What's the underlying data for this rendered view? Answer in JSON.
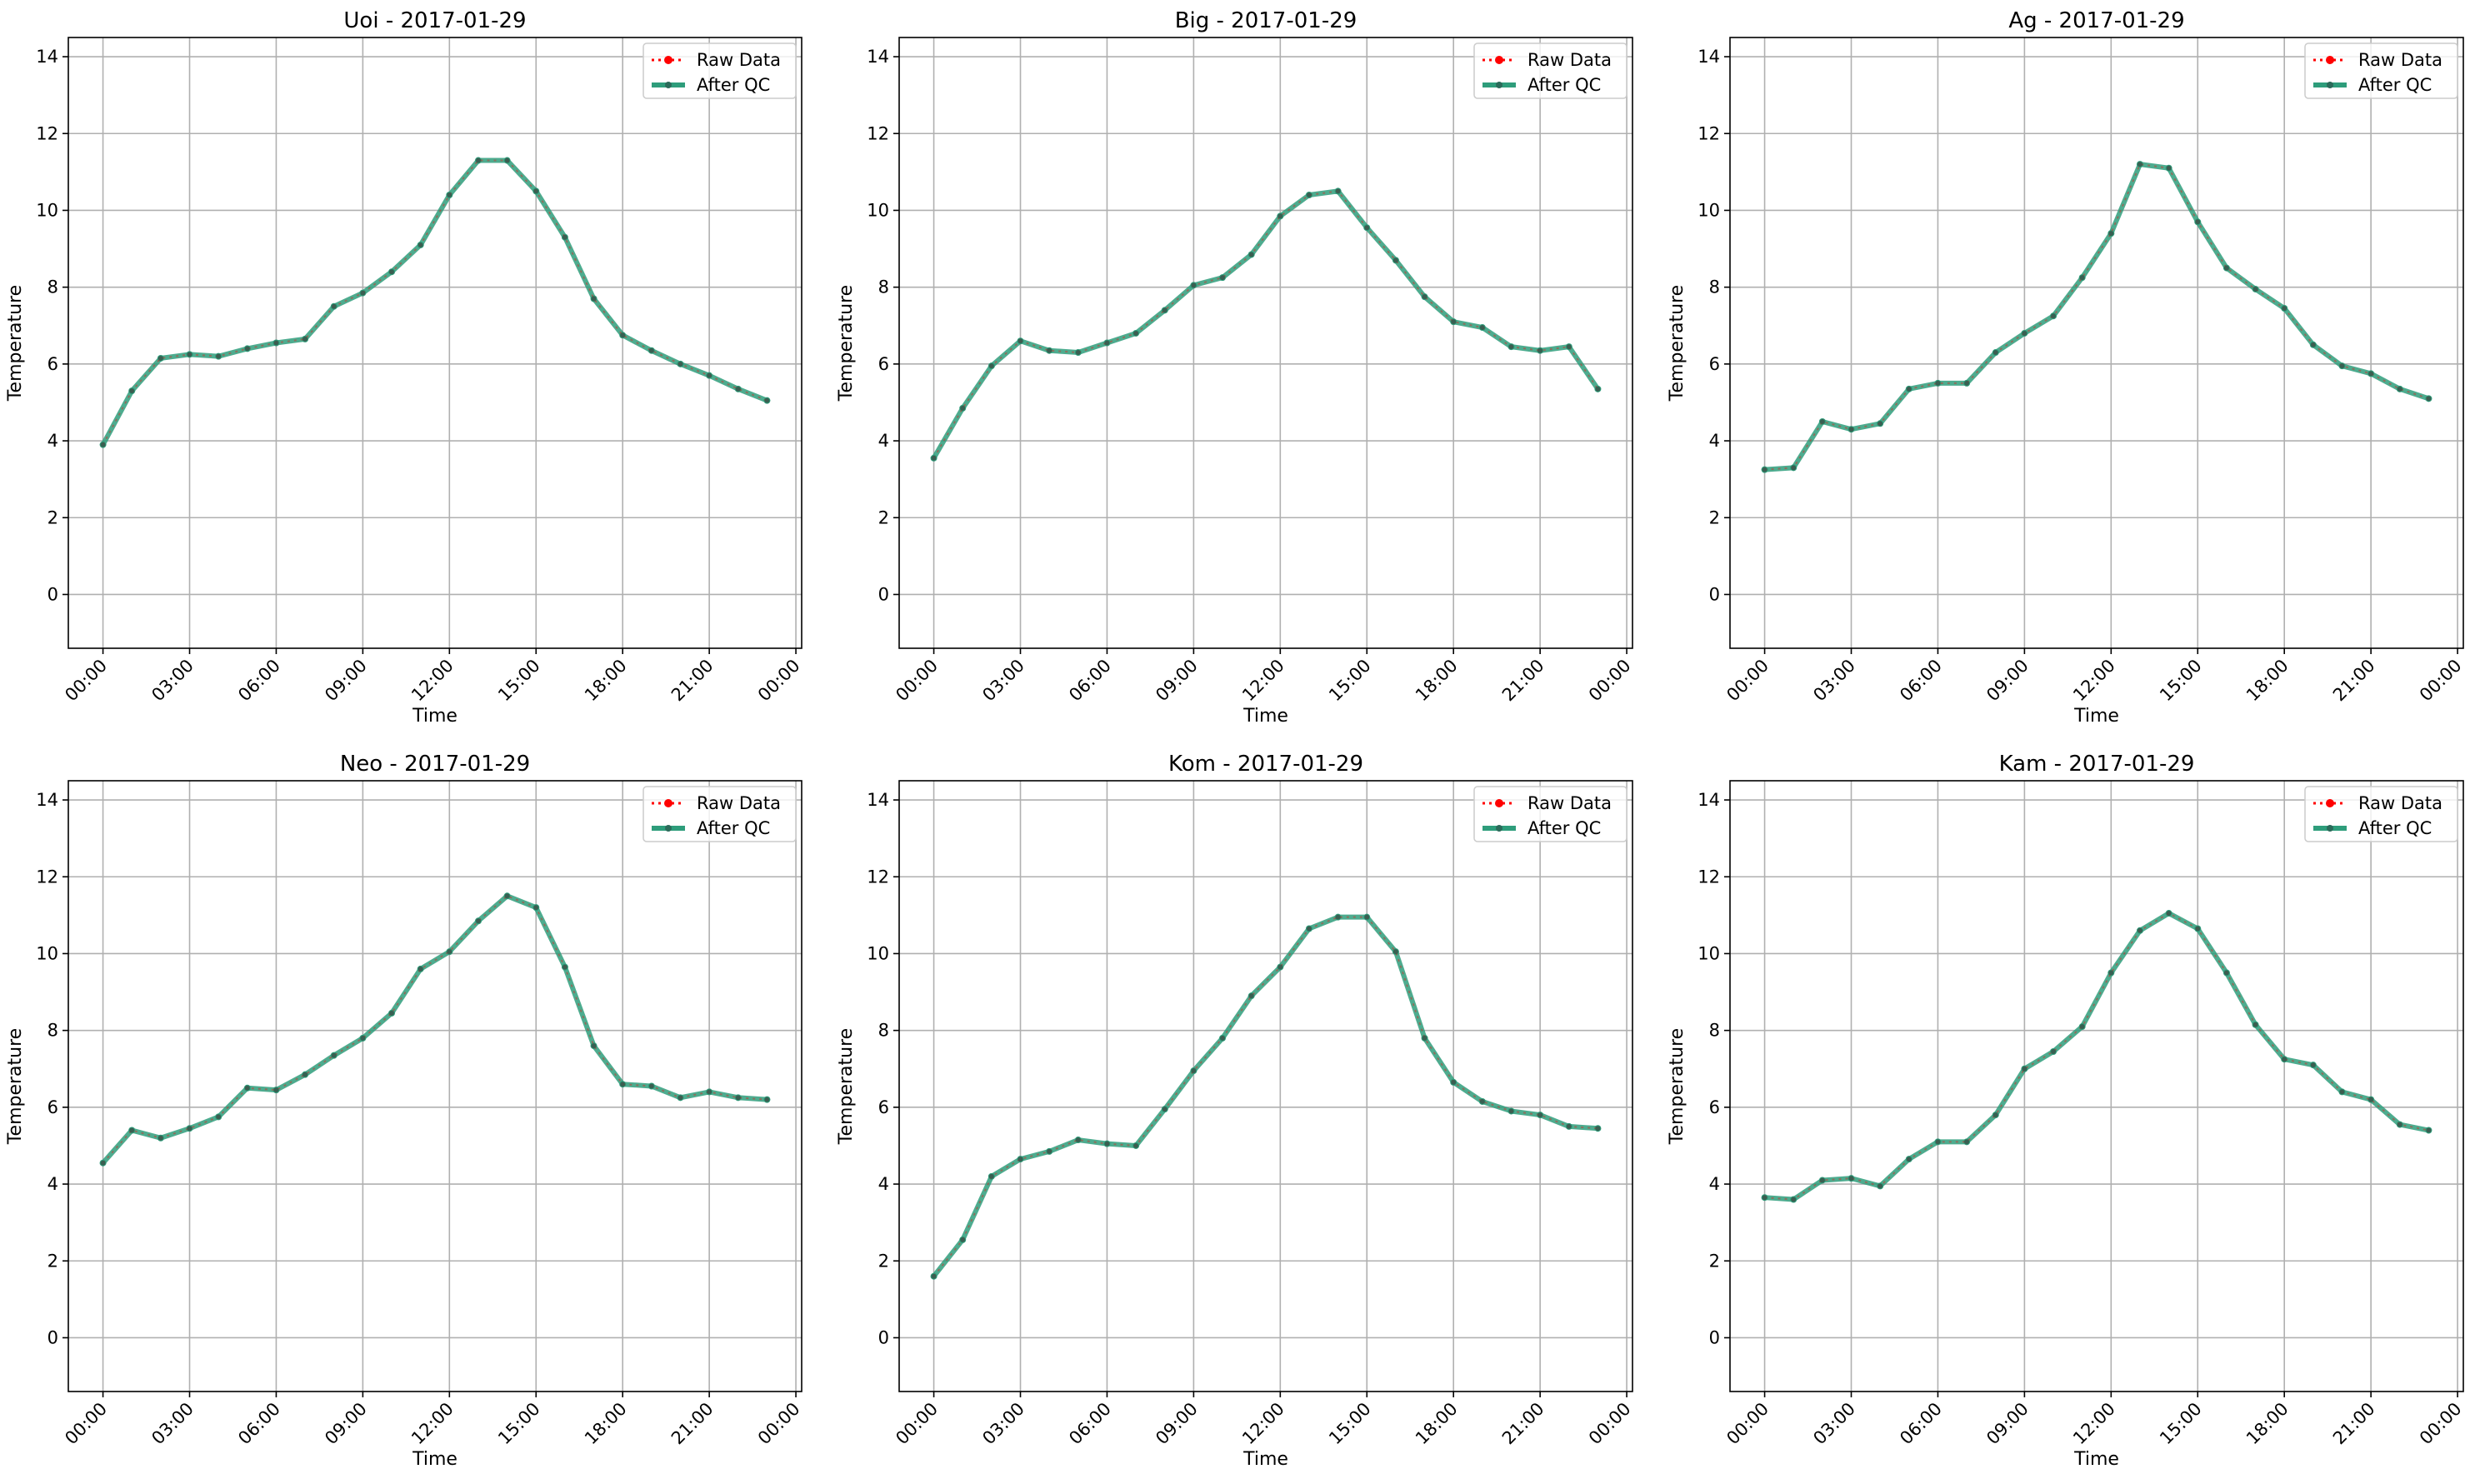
{
  "figure": {
    "background": "#ffffff",
    "raw_color": "#ff0000",
    "qc_color": "#2e9d7b"
  },
  "chart_data": [
    {
      "type": "line",
      "title": "Uoi - 2017-01-29",
      "xlabel": "Time",
      "ylabel": "Temperature",
      "x": [
        "00:00",
        "01:00",
        "02:00",
        "03:00",
        "04:00",
        "05:00",
        "06:00",
        "07:00",
        "08:00",
        "09:00",
        "10:00",
        "11:00",
        "12:00",
        "13:00",
        "14:00",
        "15:00",
        "16:00",
        "17:00",
        "18:00",
        "19:00",
        "20:00",
        "21:00",
        "22:00",
        "23:00"
      ],
      "xticks": [
        "00:00",
        "03:00",
        "06:00",
        "09:00",
        "12:00",
        "15:00",
        "18:00",
        "21:00",
        "00:00"
      ],
      "ylim": [
        -1.4,
        14.5
      ],
      "yticks": [
        "0",
        "2",
        "4",
        "6",
        "8",
        "10",
        "12",
        "14"
      ],
      "grid": true,
      "legend": "upper right",
      "series": [
        {
          "name": "Raw Data",
          "values": [
            3.9,
            5.3,
            6.15,
            6.25,
            6.2,
            6.4,
            6.55,
            6.65,
            7.5,
            7.85,
            8.4,
            9.1,
            10.4,
            11.3,
            11.3,
            10.5,
            9.3,
            7.7,
            6.75,
            6.35,
            6.0,
            5.7,
            5.35,
            5.05
          ]
        },
        {
          "name": "After QC",
          "values": [
            3.9,
            5.3,
            6.15,
            6.25,
            6.2,
            6.4,
            6.55,
            6.65,
            7.5,
            7.85,
            8.4,
            9.1,
            10.4,
            11.3,
            11.3,
            10.5,
            9.3,
            7.7,
            6.75,
            6.35,
            6.0,
            5.7,
            5.35,
            5.05
          ]
        }
      ]
    },
    {
      "type": "line",
      "title": "Big - 2017-01-29",
      "xlabel": "Time",
      "ylabel": "Temperature",
      "x": [
        "00:00",
        "01:00",
        "02:00",
        "03:00",
        "04:00",
        "05:00",
        "06:00",
        "07:00",
        "08:00",
        "09:00",
        "10:00",
        "11:00",
        "12:00",
        "13:00",
        "14:00",
        "15:00",
        "16:00",
        "17:00",
        "18:00",
        "19:00",
        "20:00",
        "21:00",
        "22:00",
        "23:00"
      ],
      "xticks": [
        "00:00",
        "03:00",
        "06:00",
        "09:00",
        "12:00",
        "15:00",
        "18:00",
        "21:00",
        "00:00"
      ],
      "ylim": [
        -1.4,
        14.5
      ],
      "yticks": [
        "0",
        "2",
        "4",
        "6",
        "8",
        "10",
        "12",
        "14"
      ],
      "grid": true,
      "legend": "upper right",
      "series": [
        {
          "name": "Raw Data",
          "values": [
            3.55,
            4.85,
            5.95,
            6.6,
            6.35,
            6.3,
            6.55,
            6.8,
            7.4,
            8.05,
            8.25,
            8.85,
            9.85,
            10.4,
            10.5,
            9.55,
            8.7,
            7.75,
            7.1,
            6.95,
            6.45,
            6.35,
            6.45,
            5.35
          ]
        },
        {
          "name": "After QC",
          "values": [
            3.55,
            4.85,
            5.95,
            6.6,
            6.35,
            6.3,
            6.55,
            6.8,
            7.4,
            8.05,
            8.25,
            8.85,
            9.85,
            10.4,
            10.5,
            9.55,
            8.7,
            7.75,
            7.1,
            6.95,
            6.45,
            6.35,
            6.45,
            5.35
          ]
        }
      ]
    },
    {
      "type": "line",
      "title": "Ag - 2017-01-29",
      "xlabel": "Time",
      "ylabel": "Temperature",
      "x": [
        "00:00",
        "01:00",
        "02:00",
        "03:00",
        "04:00",
        "05:00",
        "06:00",
        "07:00",
        "08:00",
        "09:00",
        "10:00",
        "11:00",
        "12:00",
        "13:00",
        "14:00",
        "15:00",
        "16:00",
        "17:00",
        "18:00",
        "19:00",
        "20:00",
        "21:00",
        "22:00",
        "23:00"
      ],
      "xticks": [
        "00:00",
        "03:00",
        "06:00",
        "09:00",
        "12:00",
        "15:00",
        "18:00",
        "21:00",
        "00:00"
      ],
      "ylim": [
        -1.4,
        14.5
      ],
      "yticks": [
        "0",
        "2",
        "4",
        "6",
        "8",
        "10",
        "12",
        "14"
      ],
      "grid": true,
      "legend": "upper right",
      "series": [
        {
          "name": "Raw Data",
          "values": [
            3.25,
            3.3,
            4.5,
            4.3,
            4.45,
            5.35,
            5.5,
            5.5,
            6.3,
            6.8,
            7.25,
            8.25,
            9.4,
            11.2,
            11.1,
            9.7,
            8.5,
            7.95,
            7.45,
            6.5,
            5.95,
            5.75,
            5.35,
            5.1
          ]
        },
        {
          "name": "After QC",
          "values": [
            3.25,
            3.3,
            4.5,
            4.3,
            4.45,
            5.35,
            5.5,
            5.5,
            6.3,
            6.8,
            7.25,
            8.25,
            9.4,
            11.2,
            11.1,
            9.7,
            8.5,
            7.95,
            7.45,
            6.5,
            5.95,
            5.75,
            5.35,
            5.1
          ]
        }
      ]
    },
    {
      "type": "line",
      "title": "Neo - 2017-01-29",
      "xlabel": "Time",
      "ylabel": "Temperature",
      "x": [
        "00:00",
        "01:00",
        "02:00",
        "03:00",
        "04:00",
        "05:00",
        "06:00",
        "07:00",
        "08:00",
        "09:00",
        "10:00",
        "11:00",
        "12:00",
        "13:00",
        "14:00",
        "15:00",
        "16:00",
        "17:00",
        "18:00",
        "19:00",
        "20:00",
        "21:00",
        "22:00",
        "23:00"
      ],
      "xticks": [
        "00:00",
        "03:00",
        "06:00",
        "09:00",
        "12:00",
        "15:00",
        "18:00",
        "21:00",
        "00:00"
      ],
      "ylim": [
        -1.4,
        14.5
      ],
      "yticks": [
        "0",
        "2",
        "4",
        "6",
        "8",
        "10",
        "12",
        "14"
      ],
      "grid": true,
      "legend": "upper right",
      "series": [
        {
          "name": "Raw Data",
          "values": [
            4.55,
            5.4,
            5.2,
            5.45,
            5.75,
            6.5,
            6.45,
            6.85,
            7.35,
            7.8,
            8.45,
            9.6,
            10.05,
            10.85,
            11.5,
            11.2,
            9.65,
            7.6,
            6.6,
            6.55,
            6.25,
            6.4,
            6.25,
            6.2
          ]
        },
        {
          "name": "After QC",
          "values": [
            4.55,
            5.4,
            5.2,
            5.45,
            5.75,
            6.5,
            6.45,
            6.85,
            7.35,
            7.8,
            8.45,
            9.6,
            10.05,
            10.85,
            11.5,
            11.2,
            9.65,
            7.6,
            6.6,
            6.55,
            6.25,
            6.4,
            6.25,
            6.2
          ]
        }
      ]
    },
    {
      "type": "line",
      "title": "Kom - 2017-01-29",
      "xlabel": "Time",
      "ylabel": "Temperature",
      "x": [
        "00:00",
        "01:00",
        "02:00",
        "03:00",
        "04:00",
        "05:00",
        "06:00",
        "07:00",
        "08:00",
        "09:00",
        "10:00",
        "11:00",
        "12:00",
        "13:00",
        "14:00",
        "15:00",
        "16:00",
        "17:00",
        "18:00",
        "19:00",
        "20:00",
        "21:00",
        "22:00",
        "23:00"
      ],
      "xticks": [
        "00:00",
        "03:00",
        "06:00",
        "09:00",
        "12:00",
        "15:00",
        "18:00",
        "21:00",
        "00:00"
      ],
      "ylim": [
        -1.4,
        14.5
      ],
      "yticks": [
        "0",
        "2",
        "4",
        "6",
        "8",
        "10",
        "12",
        "14"
      ],
      "grid": true,
      "legend": "upper right",
      "series": [
        {
          "name": "Raw Data",
          "values": [
            1.6,
            2.55,
            4.2,
            4.65,
            4.85,
            5.15,
            5.05,
            5.0,
            5.95,
            6.95,
            7.8,
            8.9,
            9.65,
            10.65,
            10.95,
            10.95,
            10.05,
            7.8,
            6.65,
            6.15,
            5.9,
            5.8,
            5.5,
            5.45
          ]
        },
        {
          "name": "After QC",
          "values": [
            1.6,
            2.55,
            4.2,
            4.65,
            4.85,
            5.15,
            5.05,
            5.0,
            5.95,
            6.95,
            7.8,
            8.9,
            9.65,
            10.65,
            10.95,
            10.95,
            10.05,
            7.8,
            6.65,
            6.15,
            5.9,
            5.8,
            5.5,
            5.45
          ]
        }
      ]
    },
    {
      "type": "line",
      "title": "Kam - 2017-01-29",
      "xlabel": "Time",
      "ylabel": "Temperature",
      "x": [
        "00:00",
        "01:00",
        "02:00",
        "03:00",
        "04:00",
        "05:00",
        "06:00",
        "07:00",
        "08:00",
        "09:00",
        "10:00",
        "11:00",
        "12:00",
        "13:00",
        "14:00",
        "15:00",
        "16:00",
        "17:00",
        "18:00",
        "19:00",
        "20:00",
        "21:00",
        "22:00",
        "23:00"
      ],
      "xticks": [
        "00:00",
        "03:00",
        "06:00",
        "09:00",
        "12:00",
        "15:00",
        "18:00",
        "21:00",
        "00:00"
      ],
      "ylim": [
        -1.4,
        14.5
      ],
      "yticks": [
        "0",
        "2",
        "4",
        "6",
        "8",
        "10",
        "12",
        "14"
      ],
      "grid": true,
      "legend": "upper right",
      "series": [
        {
          "name": "Raw Data",
          "values": [
            3.65,
            3.6,
            4.1,
            4.15,
            3.95,
            4.65,
            5.1,
            5.1,
            5.8,
            7.0,
            7.45,
            8.1,
            9.5,
            10.6,
            11.05,
            10.65,
            9.5,
            8.15,
            7.25,
            7.1,
            6.4,
            6.2,
            5.55,
            5.4
          ]
        },
        {
          "name": "After QC",
          "values": [
            3.65,
            3.6,
            4.1,
            4.15,
            3.95,
            4.65,
            5.1,
            5.1,
            5.8,
            7.0,
            7.45,
            8.1,
            9.5,
            10.6,
            11.05,
            10.65,
            9.5,
            8.15,
            7.25,
            7.1,
            6.4,
            6.2,
            5.55,
            5.4
          ]
        }
      ]
    }
  ]
}
